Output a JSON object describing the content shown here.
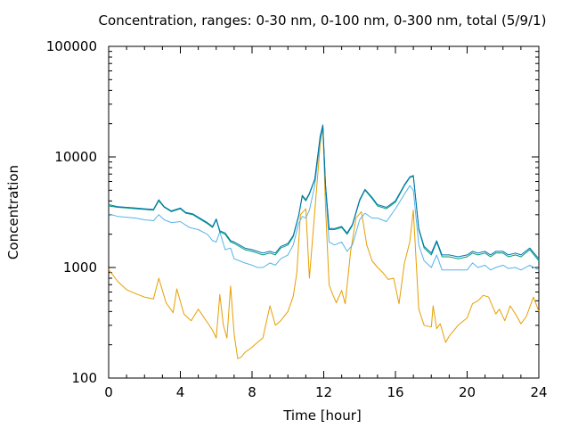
{
  "chart_data": {
    "type": "line",
    "title": "Concentration, ranges: 0-30 nm, 0-100 nm, 0-300 nm, total (5/9/1)",
    "xlabel": "Time [hour]",
    "ylabel": "Concentration",
    "xlim": [
      0,
      24
    ],
    "ylim": [
      100,
      100000
    ],
    "yscale": "log",
    "xticks": [
      0,
      4,
      8,
      12,
      16,
      20,
      24
    ],
    "yticks": [
      100,
      1000,
      10000,
      100000
    ],
    "grid": false,
    "legend": "none",
    "series": [
      {
        "color": "#e69f00",
        "x": [
          0,
          0.5,
          1,
          1.5,
          2,
          2.5,
          2.8,
          3.2,
          3.6,
          3.8,
          4.2,
          4.6,
          5,
          5.5,
          5.8,
          6,
          6.2,
          6.4,
          6.6,
          6.8,
          7,
          7.2,
          7.4,
          7.6,
          8,
          8.3,
          8.6,
          9,
          9.3,
          9.6,
          10,
          10.3,
          10.5,
          10.7,
          11,
          11.2,
          11.5,
          11.8,
          11.95,
          12.1,
          12.3,
          12.5,
          12.7,
          13,
          13.2,
          13.5,
          13.8,
          14.1,
          14.4,
          14.7,
          15,
          15.3,
          15.6,
          15.9,
          16.2,
          16.5,
          16.8,
          17,
          17.3,
          17.6,
          18,
          18.1,
          18.3,
          18.5,
          18.8,
          19,
          19.5,
          20,
          20.3,
          20.6,
          20.9,
          21.2,
          21.6,
          21.8,
          22.1,
          22.4,
          22.7,
          23,
          23.3,
          23.7,
          24
        ],
        "y": [
          960,
          750,
          630,
          580,
          540,
          520,
          800,
          480,
          390,
          640,
          380,
          330,
          420,
          320,
          270,
          230,
          570,
          300,
          230,
          680,
          250,
          150,
          155,
          170,
          190,
          210,
          230,
          450,
          300,
          330,
          400,
          550,
          900,
          3000,
          3400,
          800,
          3200,
          13000,
          18500,
          3500,
          700,
          570,
          480,
          620,
          470,
          1400,
          2800,
          3200,
          1600,
          1150,
          1000,
          900,
          780,
          800,
          470,
          1100,
          1700,
          3300,
          420,
          300,
          290,
          450,
          280,
          310,
          210,
          240,
          300,
          350,
          470,
          500,
          560,
          540,
          380,
          420,
          330,
          450,
          380,
          310,
          360,
          540,
          400
        ]
      },
      {
        "color": "#56b4e9",
        "x": [
          0,
          0.5,
          1,
          1.5,
          2,
          2.5,
          2.8,
          3.1,
          3.5,
          4,
          4.5,
          5,
          5.5,
          5.8,
          6,
          6.2,
          6.5,
          6.8,
          7,
          7.3,
          7.6,
          8,
          8.3,
          8.6,
          9,
          9.3,
          9.6,
          10,
          10.3,
          10.6,
          10.8,
          11,
          11.2,
          11.5,
          11.8,
          11.95,
          12.1,
          12.3,
          12.6,
          13,
          13.3,
          13.6,
          14,
          14.3,
          14.7,
          15,
          15.5,
          16,
          16.5,
          16.8,
          17,
          17.3,
          17.6,
          18,
          18.3,
          18.6,
          19,
          19.5,
          20,
          20.3,
          20.6,
          21,
          21.3,
          21.6,
          22,
          22.3,
          22.7,
          23,
          23.5,
          24
        ],
        "y": [
          3050,
          2900,
          2850,
          2800,
          2700,
          2650,
          3000,
          2700,
          2550,
          2600,
          2300,
          2200,
          2000,
          1750,
          1700,
          2100,
          1450,
          1500,
          1200,
          1150,
          1100,
          1050,
          1000,
          1000,
          1100,
          1050,
          1200,
          1300,
          1600,
          2500,
          2900,
          2800,
          3300,
          5500,
          14000,
          19000,
          5200,
          1700,
          1600,
          1700,
          1400,
          1600,
          2700,
          3100,
          2800,
          2800,
          2600,
          3400,
          4600,
          5500,
          5000,
          1600,
          1150,
          1000,
          1300,
          950,
          950,
          950,
          950,
          1100,
          1000,
          1050,
          950,
          1000,
          1050,
          980,
          1000,
          950,
          1050,
          950
        ]
      },
      {
        "color": "#009e73",
        "x": [
          0,
          0.5,
          1,
          1.5,
          2,
          2.5,
          2.8,
          3.1,
          3.5,
          4,
          4.3,
          4.7,
          5,
          5.5,
          5.8,
          6,
          6.2,
          6.5,
          6.8,
          7,
          7.3,
          7.6,
          8,
          8.3,
          8.6,
          9,
          9.3,
          9.6,
          10,
          10.3,
          10.6,
          10.8,
          11,
          11.2,
          11.5,
          11.8,
          11.95,
          12.1,
          12.3,
          12.6,
          13,
          13.3,
          13.6,
          14,
          14.3,
          14.7,
          15,
          15.5,
          16,
          16.5,
          16.8,
          17,
          17.3,
          17.6,
          18,
          18.3,
          18.6,
          19,
          19.5,
          20,
          20.3,
          20.6,
          21,
          21.3,
          21.6,
          22,
          22.3,
          22.7,
          23,
          23.5,
          24
        ],
        "y": [
          3600,
          3500,
          3450,
          3400,
          3350,
          3300,
          4000,
          3500,
          3200,
          3400,
          3100,
          3000,
          2800,
          2500,
          2300,
          2700,
          2100,
          2000,
          1700,
          1650,
          1550,
          1450,
          1400,
          1350,
          1300,
          1350,
          1300,
          1500,
          1600,
          1900,
          2900,
          4400,
          4000,
          4600,
          6200,
          15000,
          19000,
          5500,
          2200,
          2200,
          2300,
          2000,
          2400,
          4000,
          5000,
          4200,
          3600,
          3400,
          3900,
          5500,
          6500,
          6700,
          2200,
          1500,
          1300,
          1700,
          1250,
          1250,
          1200,
          1250,
          1350,
          1300,
          1350,
          1250,
          1350,
          1350,
          1250,
          1300,
          1250,
          1450,
          1150
        ]
      },
      {
        "color": "#0072b2",
        "x": [
          0,
          0.5,
          1,
          1.5,
          2,
          2.5,
          2.8,
          3.1,
          3.5,
          4,
          4.3,
          4.7,
          5,
          5.5,
          5.8,
          6,
          6.2,
          6.5,
          6.8,
          7,
          7.3,
          7.6,
          8,
          8.3,
          8.6,
          9,
          9.3,
          9.6,
          10,
          10.3,
          10.6,
          10.8,
          11,
          11.2,
          11.5,
          11.8,
          11.95,
          12.1,
          12.3,
          12.6,
          13,
          13.3,
          13.6,
          14,
          14.3,
          14.7,
          15,
          15.5,
          16,
          16.5,
          16.8,
          17,
          17.3,
          17.6,
          18,
          18.3,
          18.6,
          19,
          19.5,
          20,
          20.3,
          20.6,
          21,
          21.3,
          21.6,
          22,
          22.3,
          22.7,
          23,
          23.5,
          24
        ],
        "y": [
          3700,
          3550,
          3500,
          3450,
          3400,
          3350,
          4100,
          3550,
          3250,
          3450,
          3150,
          3050,
          2850,
          2550,
          2350,
          2750,
          2150,
          2050,
          1750,
          1700,
          1600,
          1500,
          1450,
          1400,
          1350,
          1400,
          1350,
          1550,
          1650,
          1950,
          2950,
          4500,
          4100,
          4700,
          6300,
          15500,
          19500,
          5600,
          2250,
          2250,
          2350,
          2050,
          2450,
          4100,
          5100,
          4300,
          3700,
          3500,
          4000,
          5600,
          6600,
          6800,
          2250,
          1550,
          1350,
          1750,
          1300,
          1300,
          1250,
          1300,
          1400,
          1350,
          1400,
          1300,
          1400,
          1400,
          1300,
          1350,
          1300,
          1500,
          1200
        ]
      }
    ]
  }
}
